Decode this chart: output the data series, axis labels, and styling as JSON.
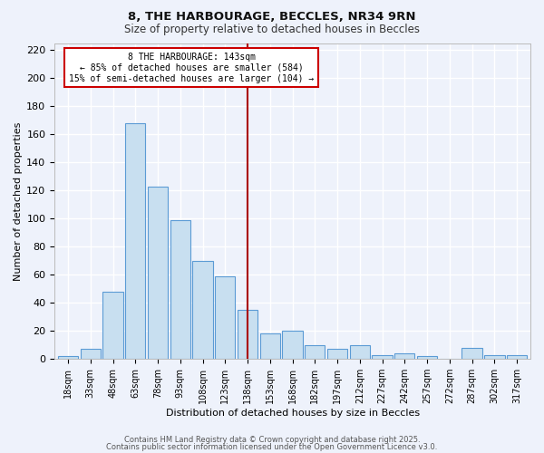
{
  "title": "8, THE HARBOURAGE, BECCLES, NR34 9RN",
  "subtitle": "Size of property relative to detached houses in Beccles",
  "xlabel": "Distribution of detached houses by size in Beccles",
  "ylabel": "Number of detached properties",
  "bar_labels": [
    "18sqm",
    "33sqm",
    "48sqm",
    "63sqm",
    "78sqm",
    "93sqm",
    "108sqm",
    "123sqm",
    "138sqm",
    "153sqm",
    "168sqm",
    "182sqm",
    "197sqm",
    "212sqm",
    "227sqm",
    "242sqm",
    "257sqm",
    "272sqm",
    "287sqm",
    "302sqm",
    "317sqm"
  ],
  "bar_values": [
    2,
    7,
    48,
    168,
    123,
    99,
    70,
    59,
    35,
    18,
    20,
    10,
    7,
    10,
    3,
    4,
    2,
    0,
    8,
    3,
    3
  ],
  "bar_color": "#c8dff0",
  "bar_edge_color": "#5b9bd5",
  "background_color": "#eef2fb",
  "grid_color": "#ffffff",
  "vline_x_index": 8,
  "vline_color": "#aa0000",
  "annotation_line1": "8 THE HARBOURAGE: 143sqm",
  "annotation_line2": "← 85% of detached houses are smaller (584)",
  "annotation_line3": "15% of semi-detached houses are larger (104) →",
  "annotation_box_color": "#ffffff",
  "annotation_box_edge_color": "#cc0000",
  "ylim": [
    0,
    225
  ],
  "yticks": [
    0,
    20,
    40,
    60,
    80,
    100,
    120,
    140,
    160,
    180,
    200,
    220
  ],
  "footer1": "Contains HM Land Registry data © Crown copyright and database right 2025.",
  "footer2": "Contains public sector information licensed under the Open Government Licence v3.0."
}
